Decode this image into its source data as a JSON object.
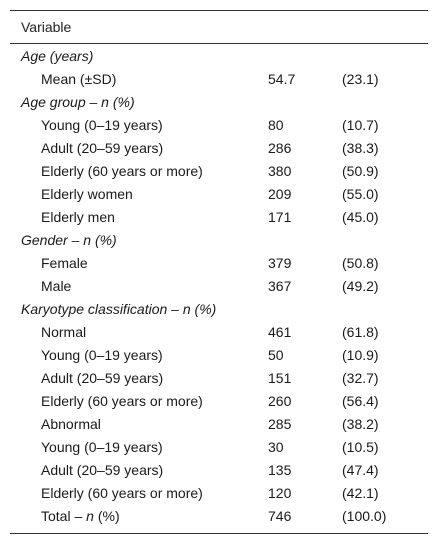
{
  "header": {
    "variable_label": "Variable"
  },
  "rows": [
    {
      "kind": "group",
      "label": "Age (years)"
    },
    {
      "kind": "item",
      "label": "Mean (±SD)",
      "n": "54.7",
      "pct": "(23.1)"
    },
    {
      "kind": "group",
      "label": "Age group – n (%)"
    },
    {
      "kind": "item",
      "label": "Young (0–19 years)",
      "n": "80",
      "pct": "(10.7)"
    },
    {
      "kind": "item",
      "label": "Adult (20–59 years)",
      "n": "286",
      "pct": "(38.3)"
    },
    {
      "kind": "item",
      "label": "Elderly (60 years or more)",
      "n": "380",
      "pct": "(50.9)"
    },
    {
      "kind": "item",
      "label": "Elderly women",
      "n": "209",
      "pct": "(55.0)"
    },
    {
      "kind": "item",
      "label": "Elderly men",
      "n": "171",
      "pct": "(45.0)"
    },
    {
      "kind": "group",
      "label": "Gender – n (%)"
    },
    {
      "kind": "item",
      "label": "Female",
      "n": "379",
      "pct": "(50.8)"
    },
    {
      "kind": "item",
      "label": "Male",
      "n": "367",
      "pct": "(49.2)"
    },
    {
      "kind": "group",
      "label": "Karyotype classification – n (%)"
    },
    {
      "kind": "item",
      "label": "Normal",
      "n": "461",
      "pct": "(61.8)"
    },
    {
      "kind": "item",
      "label": "Young (0–19 years)",
      "n": "50",
      "pct": "(10.9)"
    },
    {
      "kind": "item",
      "label": "Adult (20–59 years)",
      "n": "151",
      "pct": "(32.7)"
    },
    {
      "kind": "item",
      "label": "Elderly (60 years or more)",
      "n": "260",
      "pct": "(56.4)"
    },
    {
      "kind": "item",
      "label": "Abnormal",
      "n": "285",
      "pct": "(38.2)"
    },
    {
      "kind": "item",
      "label": "Young (0–19 years)",
      "n": "30",
      "pct": "(10.5)"
    },
    {
      "kind": "item",
      "label": "Adult (20–59 years)",
      "n": "135",
      "pct": "(47.4)"
    },
    {
      "kind": "item",
      "label": "Elderly (60 years or more)",
      "n": "120",
      "pct": "(42.1)"
    },
    {
      "kind": "total",
      "label_prefix": "Total – ",
      "label_ital": "n",
      "label_suffix": " (%)",
      "n": "746",
      "pct": "(100.0)"
    }
  ]
}
